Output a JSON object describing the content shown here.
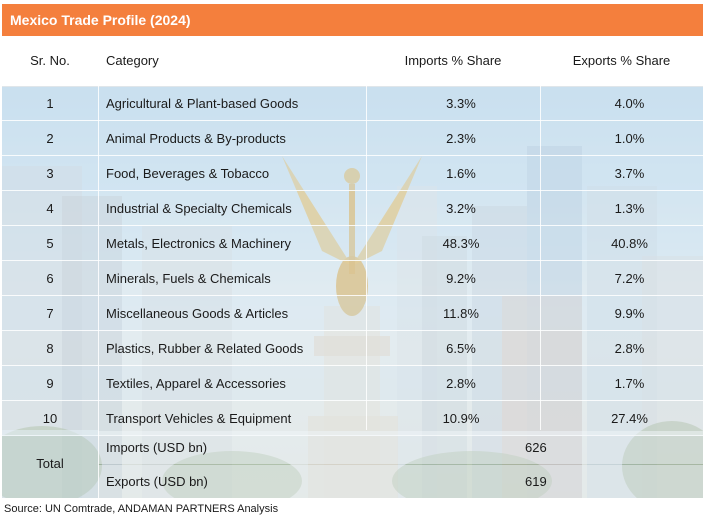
{
  "title": "Mexico Trade Profile (2024)",
  "headers": {
    "sr": "Sr. No.",
    "category": "Category",
    "imports": "Imports % Share",
    "exports": "Exports % Share"
  },
  "rows": [
    {
      "sr": "1",
      "category": "Agricultural & Plant-based Goods",
      "imports": "3.3%",
      "exports": "4.0%"
    },
    {
      "sr": "2",
      "category": "Animal Products & By-products",
      "imports": "2.3%",
      "exports": "1.0%"
    },
    {
      "sr": "3",
      "category": "Food, Beverages & Tobacco",
      "imports": "1.6%",
      "exports": "3.7%"
    },
    {
      "sr": "4",
      "category": "Industrial & Specialty Chemicals",
      "imports": "3.2%",
      "exports": "1.3%"
    },
    {
      "sr": "5",
      "category": "Metals, Electronics & Machinery",
      "imports": "48.3%",
      "exports": "40.8%"
    },
    {
      "sr": "6",
      "category": "Minerals, Fuels & Chemicals",
      "imports": "9.2%",
      "exports": "7.2%"
    },
    {
      "sr": "7",
      "category": "Miscellaneous Goods & Articles",
      "imports": "11.8%",
      "exports": "9.9%"
    },
    {
      "sr": "8",
      "category": "Plastics, Rubber & Related Goods",
      "imports": "6.5%",
      "exports": "2.8%"
    },
    {
      "sr": "9",
      "category": "Textiles, Apparel & Accessories",
      "imports": "2.8%",
      "exports": "1.7%"
    },
    {
      "sr": "10",
      "category": "Transport Vehicles & Equipment",
      "imports": "10.9%",
      "exports": "27.4%"
    }
  ],
  "total": {
    "label": "Total",
    "imports_label": "Imports (USD bn)",
    "imports_value": "626",
    "exports_label": "Exports (USD bn)",
    "exports_value": "619"
  },
  "source": "Source: UN Comtrade, ANDAMAN PARTNERS Analysis",
  "colors": {
    "title_bar": "#f47f3d",
    "title_text": "#ffffff"
  }
}
